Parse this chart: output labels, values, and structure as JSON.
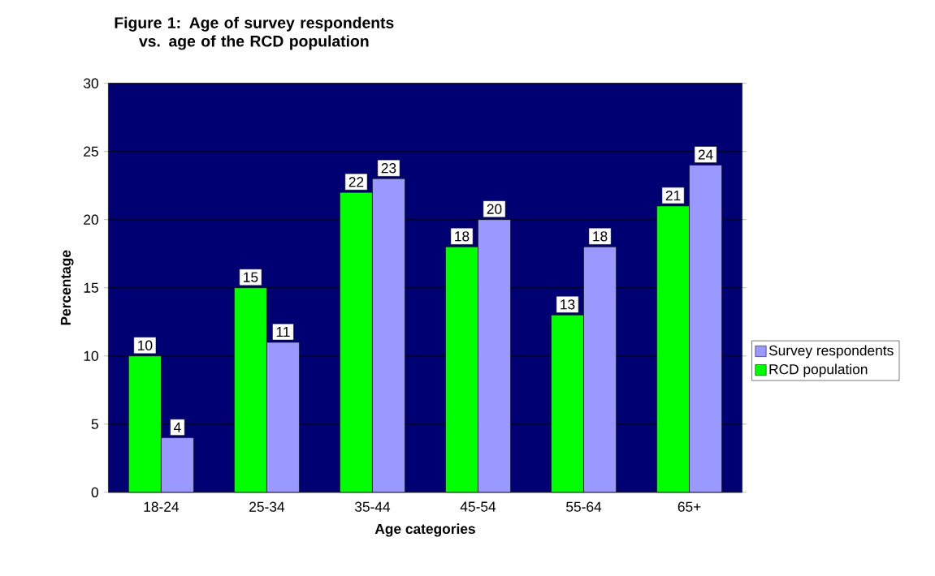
{
  "chart_data": {
    "type": "bar",
    "title": "Figure 1: Age of survey respondents vs. age of the RCD population",
    "xlabel": "Age categories",
    "ylabel": "Percentage",
    "categories": [
      "18-24",
      "25-34",
      "35-44",
      "45-54",
      "55-64",
      "65+"
    ],
    "series": [
      {
        "name": "RCD population",
        "color": "#00ff00",
        "values": [
          10,
          15,
          22,
          18,
          13,
          21
        ]
      },
      {
        "name": "Survey respondents",
        "color": "#9999ff",
        "values": [
          4,
          11,
          23,
          20,
          18,
          24
        ]
      }
    ],
    "ylim": [
      0,
      30
    ],
    "yticks": [
      0,
      5,
      10,
      15,
      20,
      25,
      30
    ],
    "grid": "y",
    "legend": "right",
    "data_labels": true
  }
}
